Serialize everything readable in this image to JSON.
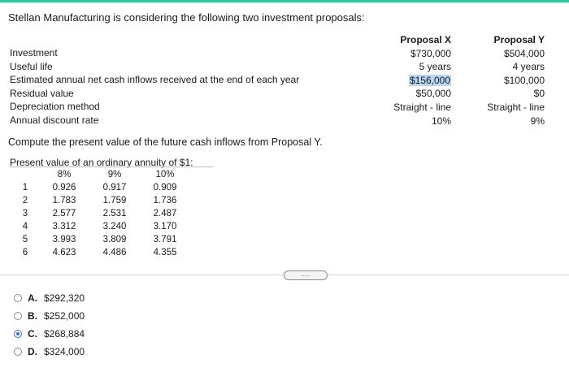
{
  "intro": "Stellan Manufacturing is considering the following two investment proposals:",
  "row_labels": [
    "Investment",
    "Useful life",
    "Estimated annual net cash inflows received at the end of each year",
    "Residual value",
    "Depreciation method",
    "Annual discount rate"
  ],
  "proposal_x": {
    "header": "Proposal X",
    "values": [
      "$730,000",
      "5 years",
      "$156,000",
      "$50,000",
      "Straight - line",
      "10%"
    ]
  },
  "proposal_y": {
    "header": "Proposal Y",
    "values": [
      "$504,000",
      "4 years",
      "$100,000",
      "$0",
      "Straight - line",
      "9%"
    ]
  },
  "question": "Compute the present value of the future cash inflows from Proposal Y.",
  "pv_table": {
    "title": "Present value of an ordinary annuity of $1:",
    "headers": [
      "8%",
      "9%",
      "10%"
    ],
    "rows": [
      [
        "1",
        "0.926",
        "0.917",
        "0.909"
      ],
      [
        "2",
        "1.783",
        "1.759",
        "1.736"
      ],
      [
        "3",
        "2.577",
        "2.531",
        "2.487"
      ],
      [
        "4",
        "3.312",
        "3.240",
        "3.170"
      ],
      [
        "5",
        "3.993",
        "3.809",
        "3.791"
      ],
      [
        "6",
        "4.623",
        "4.486",
        "4.355"
      ]
    ]
  },
  "more_button": ".....",
  "choices": [
    {
      "letter": "A.",
      "text": "$292,320",
      "selected": false
    },
    {
      "letter": "B.",
      "text": "$252,000",
      "selected": false
    },
    {
      "letter": "C.",
      "text": "$268,884",
      "selected": true
    },
    {
      "letter": "D.",
      "text": "$324,000",
      "selected": false
    }
  ],
  "colors": {
    "accent_bar": "#3cc39a",
    "highlight": "#b9d7f5",
    "radio_selected": "#3a6fd8"
  }
}
